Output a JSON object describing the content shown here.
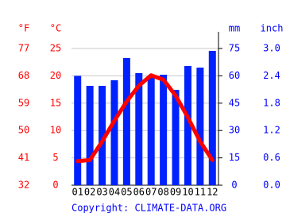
{
  "chart_data": {
    "type": "bar_line",
    "categories": [
      "01",
      "02",
      "03",
      "04",
      "05",
      "06",
      "07",
      "08",
      "09",
      "10",
      "11",
      "12"
    ],
    "series": [
      {
        "name": "mm",
        "type": "bar",
        "axis": "y2",
        "color": "#0022ff",
        "values": [
          60,
          54.5,
          54.5,
          57.6,
          69.8,
          61.5,
          59.7,
          60.6,
          52.3,
          65.4,
          64.5,
          73.7
        ]
      },
      {
        "name": "°C",
        "type": "line",
        "axis": "y",
        "color": "#ff0000",
        "values": [
          4.4,
          4.6,
          8.0,
          11.8,
          15.3,
          18.2,
          20.1,
          19.3,
          16.4,
          12.4,
          8.0,
          4.6
        ]
      }
    ],
    "y_label": "°C",
    "y_alt_label": "°F",
    "y2_label": "mm",
    "y2_alt_label": "inch",
    "ylim": [
      0,
      25
    ],
    "yticks": [
      0,
      5,
      10,
      15,
      20,
      25
    ],
    "y_alt_lim": [
      32,
      77
    ],
    "y_alt_ticks": [
      32,
      41,
      50,
      59,
      68,
      77
    ],
    "y2lim": [
      0,
      75
    ],
    "y2ticks": [
      0,
      15,
      30,
      45,
      60,
      75
    ],
    "y2_alt_lim": [
      0,
      3
    ],
    "y2_alt_ticks": [
      {
        "value": 0,
        "label": "0.0"
      },
      {
        "value": 0.6,
        "label": "0.6"
      },
      {
        "value": 1.2,
        "label": "1.2"
      },
      {
        "value": 1.8,
        "label": "1.8"
      },
      {
        "value": 2.4,
        "label": "2.4"
      },
      {
        "value": 3,
        "label": "3.0"
      }
    ],
    "grid": true,
    "footer": "Copyright: CLIMATE-DATA.ORG"
  }
}
